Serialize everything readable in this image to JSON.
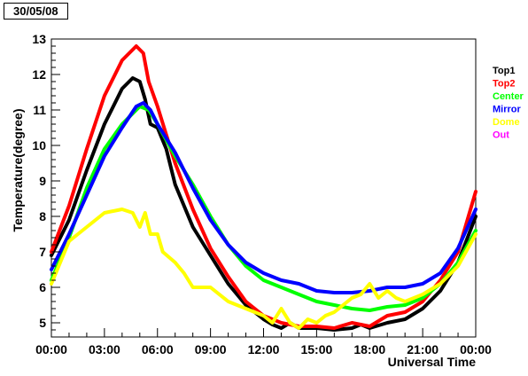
{
  "date_label": "30/05/08",
  "chart_data": {
    "type": "line",
    "xlabel": "Universal Time",
    "ylabel": "Temperature(degree)",
    "xlim": [
      0,
      24
    ],
    "ylim": [
      4.6,
      13
    ],
    "x_ticks": [
      0,
      3,
      6,
      9,
      12,
      15,
      18,
      21,
      24
    ],
    "x_tick_labels": [
      "00:00",
      "03:00",
      "06:00",
      "09:00",
      "12:00",
      "15:00",
      "18:00",
      "21:00",
      "00:00"
    ],
    "y_ticks": [
      5,
      6,
      7,
      8,
      9,
      10,
      11,
      12,
      13
    ],
    "y_tick_labels": [
      "5",
      "6",
      "7",
      "8",
      "9",
      "10",
      "11",
      "12",
      "13"
    ],
    "legend_position": "right",
    "series": [
      {
        "name": "Top1",
        "color": "#000000",
        "points": [
          [
            0,
            6.9
          ],
          [
            1,
            7.9
          ],
          [
            2,
            9.3
          ],
          [
            3,
            10.6
          ],
          [
            4,
            11.6
          ],
          [
            4.6,
            11.9
          ],
          [
            5,
            11.8
          ],
          [
            5.3,
            11.3
          ],
          [
            5.6,
            10.6
          ],
          [
            6,
            10.5
          ],
          [
            6.5,
            9.9
          ],
          [
            7,
            8.9
          ],
          [
            8,
            7.7
          ],
          [
            9,
            6.9
          ],
          [
            10,
            6.1
          ],
          [
            11,
            5.5
          ],
          [
            12,
            5.1
          ],
          [
            12.5,
            4.95
          ],
          [
            13,
            4.85
          ],
          [
            13.5,
            5.0
          ],
          [
            14,
            4.85
          ],
          [
            15,
            4.85
          ],
          [
            16,
            4.8
          ],
          [
            17,
            4.85
          ],
          [
            17.5,
            4.95
          ],
          [
            18,
            4.85
          ],
          [
            19,
            5.0
          ],
          [
            20,
            5.1
          ],
          [
            21,
            5.4
          ],
          [
            22,
            5.9
          ],
          [
            23,
            6.7
          ],
          [
            24,
            8.0
          ]
        ]
      },
      {
        "name": "Top2",
        "color": "#ff0000",
        "points": [
          [
            0,
            7.0
          ],
          [
            1,
            8.3
          ],
          [
            2,
            9.9
          ],
          [
            3,
            11.4
          ],
          [
            4,
            12.4
          ],
          [
            4.8,
            12.8
          ],
          [
            5.2,
            12.6
          ],
          [
            5.5,
            11.8
          ],
          [
            6,
            11.1
          ],
          [
            6.5,
            10.3
          ],
          [
            7,
            9.5
          ],
          [
            8,
            8.2
          ],
          [
            9,
            7.1
          ],
          [
            10,
            6.3
          ],
          [
            11,
            5.6
          ],
          [
            12,
            5.2
          ],
          [
            13,
            5.0
          ],
          [
            14,
            4.9
          ],
          [
            15,
            4.9
          ],
          [
            16,
            4.85
          ],
          [
            17,
            5.0
          ],
          [
            18,
            4.9
          ],
          [
            19,
            5.2
          ],
          [
            20,
            5.3
          ],
          [
            21,
            5.6
          ],
          [
            22,
            6.2
          ],
          [
            23,
            7.0
          ],
          [
            24,
            8.7
          ]
        ]
      },
      {
        "name": "Center",
        "color": "#00ff00",
        "points": [
          [
            0,
            6.2
          ],
          [
            1,
            7.4
          ],
          [
            2,
            8.8
          ],
          [
            3,
            9.9
          ],
          [
            4,
            10.6
          ],
          [
            5,
            11.1
          ],
          [
            5.5,
            11.0
          ],
          [
            6,
            10.6
          ],
          [
            7,
            9.7
          ],
          [
            8,
            8.9
          ],
          [
            9,
            8.0
          ],
          [
            10,
            7.2
          ],
          [
            11,
            6.6
          ],
          [
            12,
            6.2
          ],
          [
            13,
            6.0
          ],
          [
            14,
            5.8
          ],
          [
            15,
            5.6
          ],
          [
            16,
            5.5
          ],
          [
            17,
            5.4
          ],
          [
            18,
            5.35
          ],
          [
            19,
            5.45
          ],
          [
            20,
            5.5
          ],
          [
            21,
            5.7
          ],
          [
            22,
            6.1
          ],
          [
            23,
            6.7
          ],
          [
            24,
            7.6
          ]
        ]
      },
      {
        "name": "Mirror",
        "color": "#0000ff",
        "points": [
          [
            0,
            6.5
          ],
          [
            1,
            7.5
          ],
          [
            2,
            8.6
          ],
          [
            3,
            9.7
          ],
          [
            4,
            10.5
          ],
          [
            4.8,
            11.1
          ],
          [
            5.2,
            11.2
          ],
          [
            5.6,
            11.0
          ],
          [
            6,
            10.6
          ],
          [
            7,
            9.8
          ],
          [
            8,
            8.8
          ],
          [
            9,
            7.9
          ],
          [
            10,
            7.2
          ],
          [
            11,
            6.7
          ],
          [
            12,
            6.4
          ],
          [
            13,
            6.2
          ],
          [
            14,
            6.1
          ],
          [
            15,
            5.9
          ],
          [
            16,
            5.85
          ],
          [
            17,
            5.85
          ],
          [
            18,
            5.9
          ],
          [
            19,
            6.0
          ],
          [
            20,
            6.0
          ],
          [
            21,
            6.1
          ],
          [
            22,
            6.4
          ],
          [
            23,
            7.1
          ],
          [
            24,
            8.2
          ]
        ]
      },
      {
        "name": "Dome",
        "color": "#ffff00",
        "points": [
          [
            0,
            6.1
          ],
          [
            1,
            7.3
          ],
          [
            2,
            7.7
          ],
          [
            3,
            8.1
          ],
          [
            4,
            8.2
          ],
          [
            4.6,
            8.1
          ],
          [
            5,
            7.7
          ],
          [
            5.3,
            8.1
          ],
          [
            5.6,
            7.5
          ],
          [
            6,
            7.5
          ],
          [
            6.3,
            7.0
          ],
          [
            7,
            6.7
          ],
          [
            7.5,
            6.4
          ],
          [
            8,
            6.0
          ],
          [
            9,
            6.0
          ],
          [
            10,
            5.6
          ],
          [
            11,
            5.4
          ],
          [
            12,
            5.2
          ],
          [
            12.5,
            5.0
          ],
          [
            13,
            5.4
          ],
          [
            13.5,
            5.0
          ],
          [
            14,
            4.85
          ],
          [
            14.5,
            5.1
          ],
          [
            15,
            5.0
          ],
          [
            15.5,
            5.2
          ],
          [
            16,
            5.3
          ],
          [
            16.5,
            5.5
          ],
          [
            17,
            5.7
          ],
          [
            17.5,
            5.8
          ],
          [
            18,
            6.1
          ],
          [
            18.5,
            5.7
          ],
          [
            19,
            5.9
          ],
          [
            19.5,
            5.7
          ],
          [
            20,
            5.6
          ],
          [
            21,
            5.8
          ],
          [
            22,
            6.1
          ],
          [
            23,
            6.6
          ],
          [
            24,
            7.5
          ]
        ]
      },
      {
        "name": "Out",
        "color": "#ff00ff",
        "points": []
      }
    ]
  }
}
